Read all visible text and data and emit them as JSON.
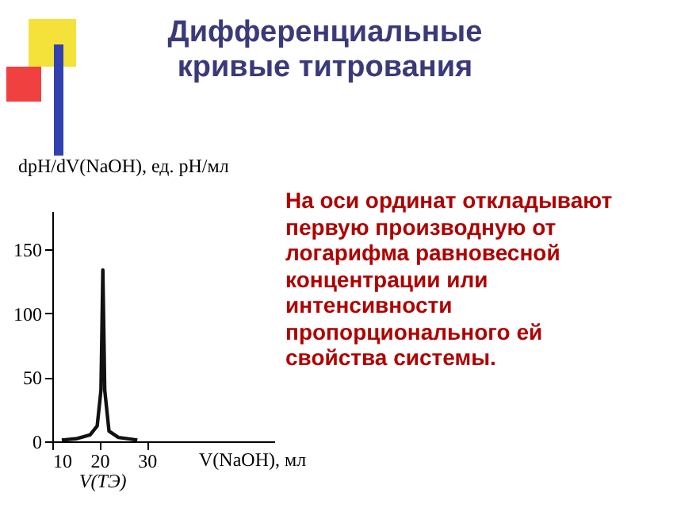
{
  "chart_data": {
    "type": "line",
    "title": "Дифференциальные кривые титрования",
    "xlabel": "V(NaOH), мл",
    "ylabel": "dpH/dV(NaOH), ед. pH/мл",
    "x": [
      12,
      15,
      18,
      19.5,
      20.3,
      20.7,
      21.1,
      22,
      24,
      28
    ],
    "series": [
      {
        "color": "#111111",
        "values": [
          1,
          2,
          5,
          12,
          40,
          134,
          40,
          8,
          3,
          1
        ]
      }
    ],
    "xlim": [
      10,
      57
    ],
    "xticks": [
      10,
      20,
      30
    ],
    "ylim": [
      0,
      180
    ],
    "yticks": [
      0,
      50,
      100,
      150
    ],
    "grid": false,
    "legend": false,
    "marker": "none",
    "line_style": "solid",
    "annotations": [
      "V(ТЭ)",
      "На оси ординат откладывают первую производную от логарифма равновесной концентрации или интенсивности пропорционального ей свойства системы."
    ]
  }
}
